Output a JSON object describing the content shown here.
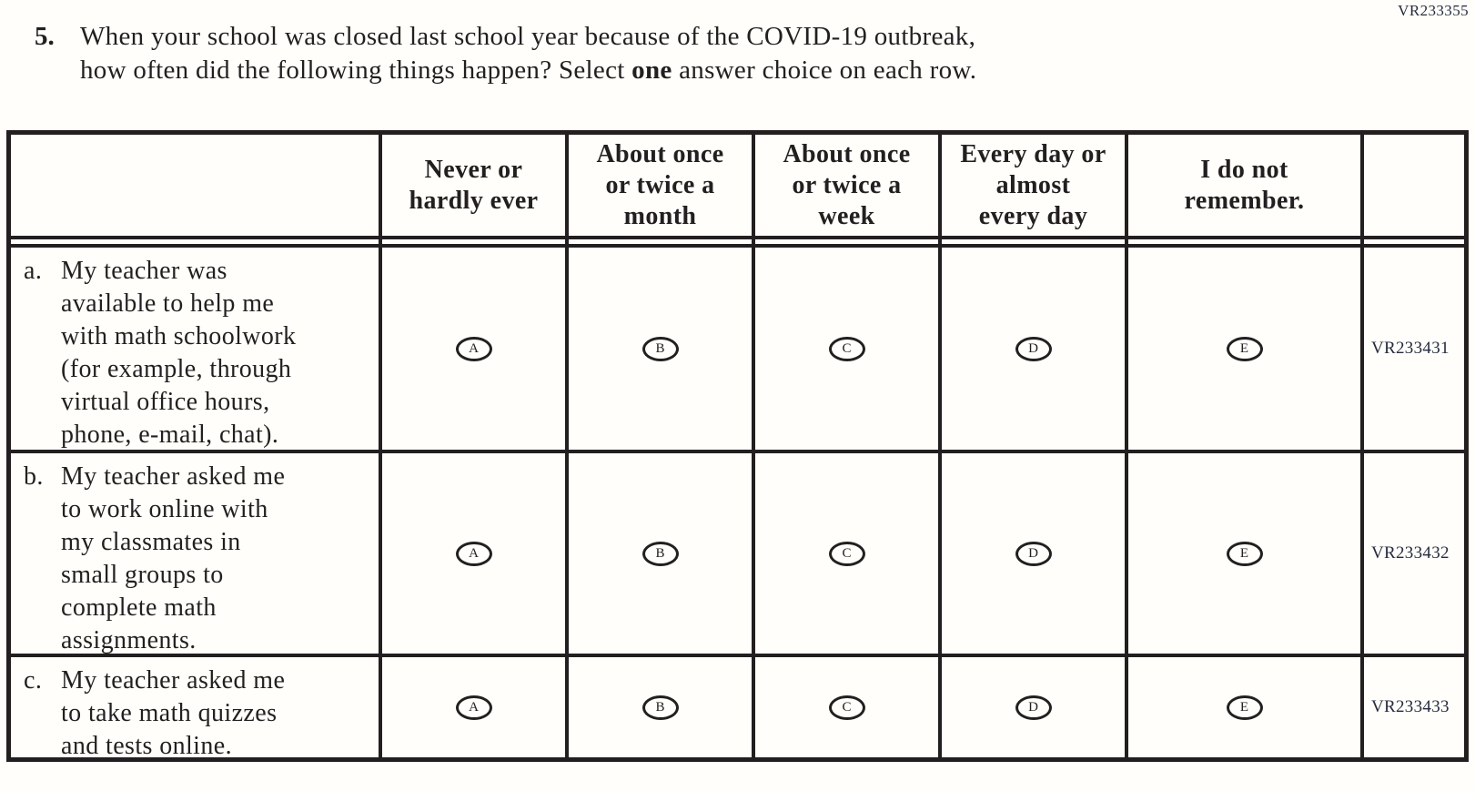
{
  "page_code": "VR233355",
  "question": {
    "number": "5.",
    "line1": "When your school was closed last school year because of the COVID-19 outbreak,",
    "line2_pre": "how often did the following things happen? Select ",
    "line2_bold": "one",
    "line2_post": " answer choice on each row."
  },
  "table": {
    "columns": [
      "Never or\nhardly ever",
      "About once\nor twice a\nmonth",
      "About once\nor twice a\nweek",
      "Every day or\nalmost\nevery day",
      "I do not\nremember."
    ],
    "options": [
      "A",
      "B",
      "C",
      "D",
      "E"
    ],
    "rows": [
      {
        "letter": "a.",
        "text": "My teacher was\navailable to help me\nwith math schoolwork\n(for example, through\nvirtual office hours,\nphone, e-mail, chat).",
        "code": "VR233431"
      },
      {
        "letter": "b.",
        "text": "My teacher asked me\nto work online with\nmy classmates in\nsmall groups to\ncomplete math\nassignments.",
        "code": "VR233432"
      },
      {
        "letter": "c.",
        "text": "My teacher asked me\nto take math quizzes\nand tests online.",
        "code": "VR233433"
      }
    ]
  },
  "colors": {
    "ink": "#231f20",
    "code_ink": "#252c3e",
    "paper": "#fffefa"
  }
}
